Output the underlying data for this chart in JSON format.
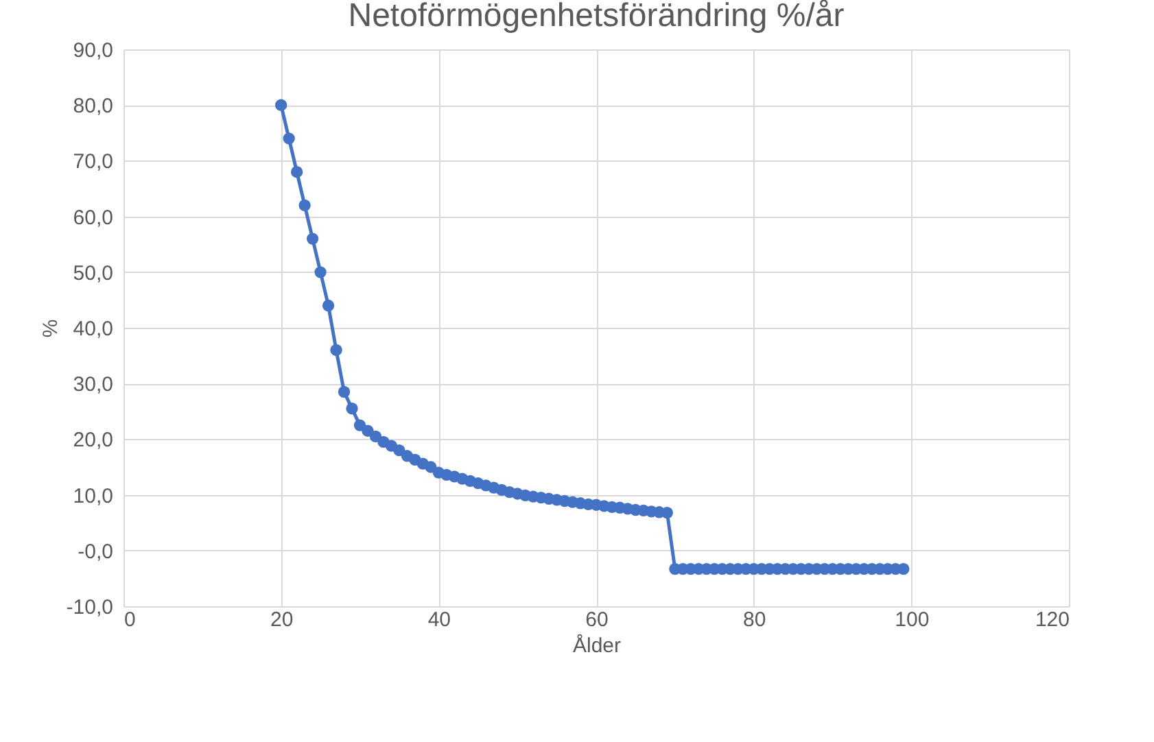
{
  "chart_data": {
    "type": "line",
    "title": "Netoförmögenhetsförändring  %/år",
    "xlabel": "Ålder",
    "ylabel": "%",
    "x": [
      20,
      21,
      22,
      23,
      24,
      25,
      26,
      27,
      28,
      29,
      30,
      31,
      32,
      33,
      34,
      35,
      36,
      37,
      38,
      39,
      40,
      41,
      42,
      43,
      44,
      45,
      46,
      47,
      48,
      49,
      50,
      51,
      52,
      53,
      54,
      55,
      56,
      57,
      58,
      59,
      60,
      61,
      62,
      63,
      64,
      65,
      66,
      67,
      68,
      69,
      70,
      71,
      72,
      73,
      74,
      75,
      76,
      77,
      78,
      79,
      80,
      81,
      82,
      83,
      84,
      85,
      86,
      87,
      88,
      89,
      90,
      91,
      92,
      93,
      94,
      95,
      96,
      97,
      98,
      99
    ],
    "series": [
      {
        "color": "#4472c4",
        "values": [
          80.0,
          74.0,
          68.0,
          62.0,
          56.0,
          50.0,
          44.0,
          36.0,
          28.5,
          25.5,
          22.5,
          21.5,
          20.5,
          19.5,
          18.8,
          18.0,
          17.0,
          16.3,
          15.6,
          15.0,
          14.0,
          13.6,
          13.3,
          12.9,
          12.5,
          12.1,
          11.7,
          11.3,
          10.9,
          10.5,
          10.2,
          9.9,
          9.7,
          9.5,
          9.3,
          9.1,
          8.9,
          8.7,
          8.5,
          8.3,
          8.2,
          8.0,
          7.8,
          7.7,
          7.5,
          7.3,
          7.2,
          7.0,
          6.9,
          6.8,
          -3.3,
          -3.3,
          -3.3,
          -3.3,
          -3.3,
          -3.3,
          -3.3,
          -3.3,
          -3.3,
          -3.3,
          -3.3,
          -3.3,
          -3.3,
          -3.3,
          -3.3,
          -3.3,
          -3.3,
          -3.3,
          -3.3,
          -3.3,
          -3.3,
          -3.3,
          -3.3,
          -3.3,
          -3.3,
          -3.3,
          -3.3,
          -3.3,
          -3.3,
          -3.3
        ]
      }
    ],
    "xlim": [
      0,
      120
    ],
    "xticks": [
      0,
      20,
      40,
      60,
      80,
      100,
      120
    ],
    "ylim": [
      -10,
      90
    ],
    "yticks": [
      {
        "value": -10,
        "label": "-10,0"
      },
      {
        "value": 0,
        "label": "-0,0"
      },
      {
        "value": 10,
        "label": "10,0"
      },
      {
        "value": 20,
        "label": "20,0"
      },
      {
        "value": 30,
        "label": "30,0"
      },
      {
        "value": 40,
        "label": "40,0"
      },
      {
        "value": 50,
        "label": "50,0"
      },
      {
        "value": 60,
        "label": "60,0"
      },
      {
        "value": 70,
        "label": "70,0"
      },
      {
        "value": 80,
        "label": "80,0"
      },
      {
        "value": 90,
        "label": "90,0"
      }
    ],
    "grid": true,
    "marker": "circle",
    "line_style": "solid"
  }
}
